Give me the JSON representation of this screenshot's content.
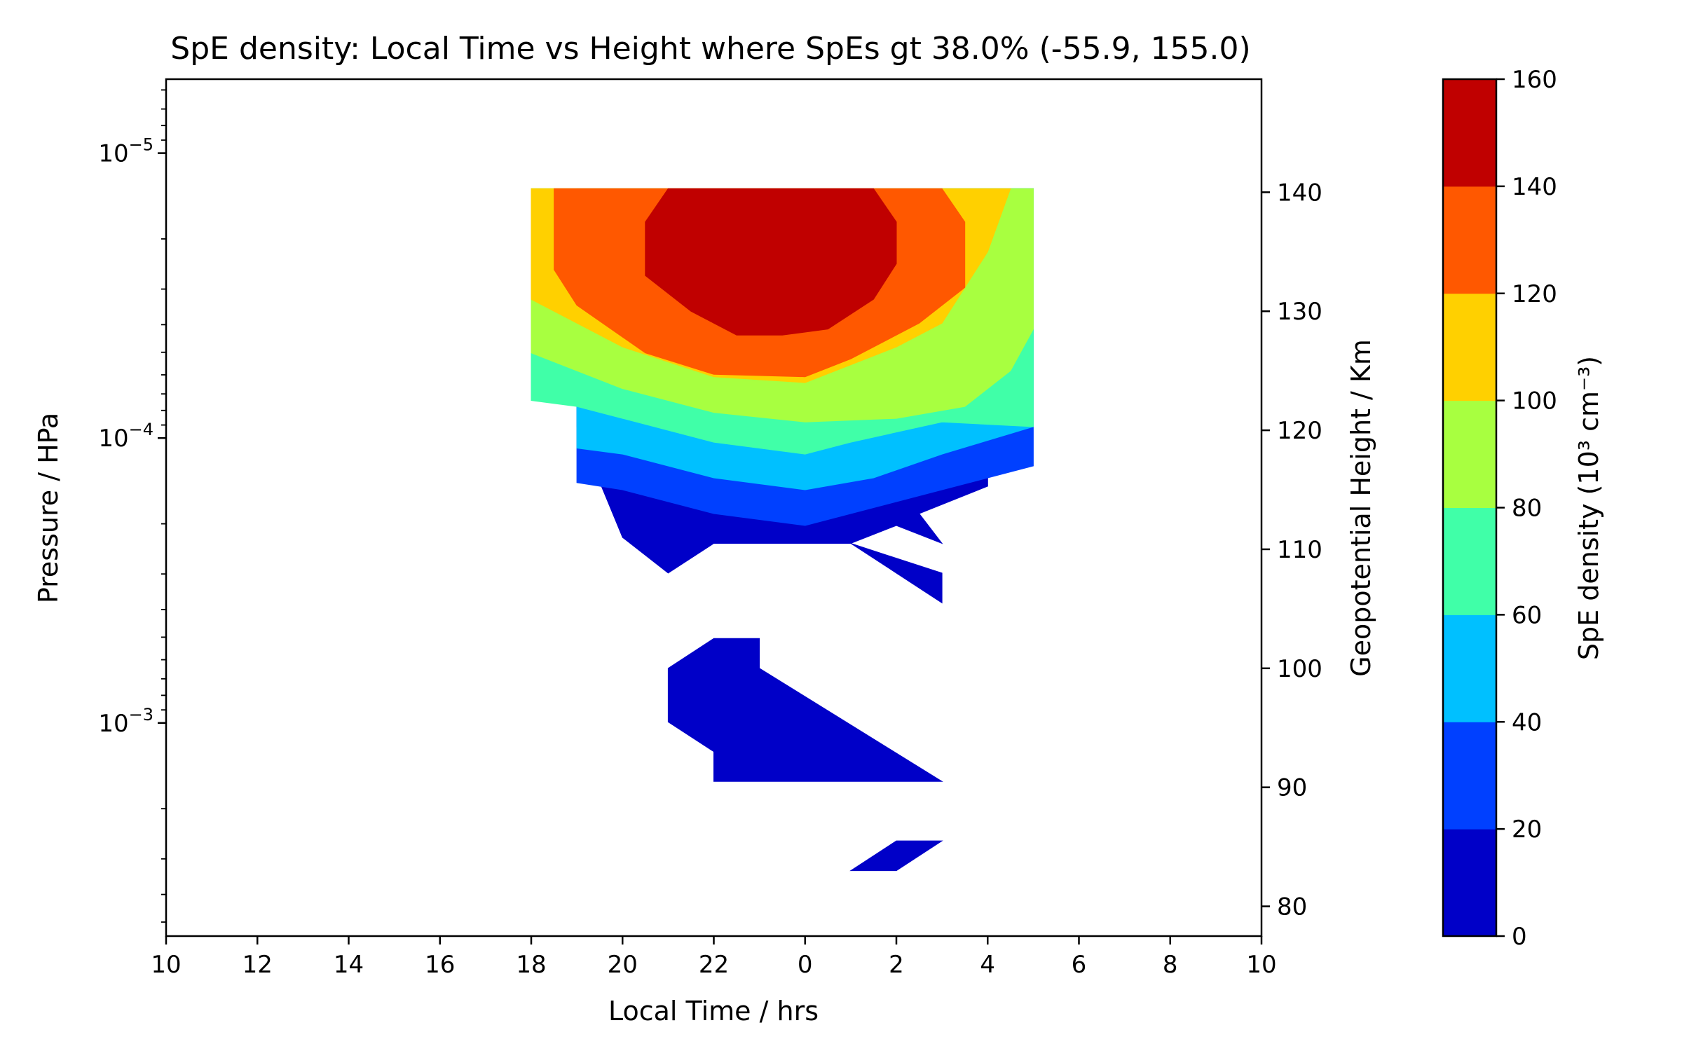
{
  "chart_data": {
    "type": "heatmap",
    "subtype": "filled-contour",
    "title": "SpE density: Local Time vs Height where SpEs gt 38.0%  (-55.9, 155.0)",
    "xlabel": "Local Time / hrs",
    "ylabel": "Pressure / HPa",
    "y2label": "Geopotential Height / Km",
    "colorbar_label": "SpE density (10³ cm⁻³)",
    "grid": false,
    "x_axis": {
      "range": [
        0,
        24
      ],
      "ticks": [
        {
          "pos": 0,
          "label": "10"
        },
        {
          "pos": 2,
          "label": "12"
        },
        {
          "pos": 4,
          "label": "14"
        },
        {
          "pos": 6,
          "label": "16"
        },
        {
          "pos": 8,
          "label": "18"
        },
        {
          "pos": 10,
          "label": "20"
        },
        {
          "pos": 12,
          "label": "22"
        },
        {
          "pos": 14,
          "label": "0"
        },
        {
          "pos": 16,
          "label": "2"
        },
        {
          "pos": 18,
          "label": "4"
        },
        {
          "pos": 20,
          "label": "6"
        },
        {
          "pos": 22,
          "label": "8"
        },
        {
          "pos": 24,
          "label": "10"
        }
      ]
    },
    "y_axis": {
      "scale": "log",
      "inverted": true,
      "range": [
        5.5e-06,
        0.0056
      ],
      "major_ticks": [
        {
          "value": 1e-05,
          "base": "10",
          "exp": "−5"
        },
        {
          "value": 0.0001,
          "base": "10",
          "exp": "−4"
        },
        {
          "value": 0.001,
          "base": "10",
          "exp": "−3"
        }
      ]
    },
    "y2_axis": {
      "range": [
        77.5,
        149.5
      ],
      "ticks": [
        {
          "value": 80,
          "label": "80"
        },
        {
          "value": 90,
          "label": "90"
        },
        {
          "value": 100,
          "label": "100"
        },
        {
          "value": 110,
          "label": "110"
        },
        {
          "value": 120,
          "label": "120"
        },
        {
          "value": 130,
          "label": "130"
        },
        {
          "value": 140,
          "label": "140"
        }
      ]
    },
    "levels": [
      0,
      20,
      40,
      60,
      80,
      100,
      120,
      140,
      160
    ],
    "colors": [
      "#0000c8",
      "#0040ff",
      "#00c0ff",
      "#40ffa8",
      "#a8ff40",
      "#ffd000",
      "#ff5800",
      "#c00000"
    ],
    "colorbar_ticks": [
      0,
      20,
      40,
      60,
      80,
      100,
      120,
      140,
      160
    ],
    "regions": [
      {
        "level": 0,
        "points": [
          [
            9,
            140.3
          ],
          [
            19,
            140.3
          ],
          [
            19,
            120.3
          ],
          [
            18,
            120.3
          ],
          [
            18,
            115.3
          ],
          [
            16.5,
            113
          ],
          [
            17,
            110.5
          ],
          [
            16,
            112
          ],
          [
            15,
            110.5
          ],
          [
            14,
            110.5
          ],
          [
            12,
            110.5
          ],
          [
            11,
            108
          ],
          [
            10,
            111
          ],
          [
            9,
            120.3
          ]
        ]
      },
      {
        "level": 0,
        "points": [
          [
            15,
            110.5
          ],
          [
            17,
            108
          ],
          [
            17,
            105.5
          ],
          [
            16,
            108
          ]
        ]
      },
      {
        "level": 0,
        "points": [
          [
            11,
            100
          ],
          [
            12,
            102.5
          ],
          [
            13,
            102.5
          ],
          [
            13,
            100
          ],
          [
            17,
            90.5
          ],
          [
            12,
            90.5
          ],
          [
            12,
            93
          ],
          [
            11,
            95.5
          ]
        ]
      },
      {
        "level": 0,
        "points": [
          [
            16,
            85.5
          ],
          [
            17,
            85.5
          ],
          [
            16,
            83
          ],
          [
            15,
            83
          ]
        ]
      },
      {
        "level": 20,
        "points": [
          [
            9,
            140.3
          ],
          [
            19,
            140.3
          ],
          [
            19,
            117
          ],
          [
            17,
            115
          ],
          [
            15.5,
            113.5
          ],
          [
            14,
            112
          ],
          [
            12,
            113
          ],
          [
            10,
            115
          ],
          [
            9,
            115.6
          ]
        ]
      },
      {
        "level": 40,
        "points": [
          [
            9,
            140.3
          ],
          [
            19,
            140.3
          ],
          [
            19,
            120.3
          ],
          [
            17,
            118
          ],
          [
            15.5,
            116
          ],
          [
            14,
            115
          ],
          [
            12,
            116
          ],
          [
            10,
            118
          ],
          [
            9,
            118.5
          ]
        ]
      },
      {
        "level": 60,
        "points": [
          [
            8,
            140.3
          ],
          [
            19,
            140.3
          ],
          [
            19,
            120.3
          ],
          [
            17,
            120.7
          ],
          [
            15,
            119
          ],
          [
            14,
            118
          ],
          [
            12,
            119
          ],
          [
            10,
            121
          ],
          [
            9,
            122
          ],
          [
            8,
            122.5
          ]
        ]
      },
      {
        "level": 80,
        "points": [
          [
            8,
            140.3
          ],
          [
            19,
            140.3
          ],
          [
            19,
            128.5
          ],
          [
            18.5,
            125
          ],
          [
            17.5,
            122
          ],
          [
            16,
            121
          ],
          [
            14,
            120.7
          ],
          [
            12,
            121.5
          ],
          [
            10,
            123.5
          ],
          [
            8,
            126.5
          ]
        ]
      },
      {
        "level": 100,
        "points": [
          [
            8,
            140.3
          ],
          [
            18.5,
            140.3
          ],
          [
            18,
            135
          ],
          [
            17.5,
            132
          ],
          [
            17,
            129
          ],
          [
            16,
            127
          ],
          [
            14,
            124
          ],
          [
            12,
            124.5
          ],
          [
            10,
            127
          ],
          [
            8,
            131
          ]
        ]
      },
      {
        "level": 120,
        "points": [
          [
            8.5,
            140.3
          ],
          [
            17,
            140.3
          ],
          [
            17.5,
            137.5
          ],
          [
            17.5,
            132
          ],
          [
            16.5,
            129
          ],
          [
            15,
            126
          ],
          [
            14,
            124.5
          ],
          [
            12,
            124.7
          ],
          [
            10.5,
            126.5
          ],
          [
            9,
            130.5
          ],
          [
            8.5,
            133.5
          ],
          [
            8.5,
            137.5
          ]
        ]
      },
      {
        "level": 140,
        "points": [
          [
            11,
            140.3
          ],
          [
            15.5,
            140.3
          ],
          [
            16,
            137.5
          ],
          [
            16,
            134
          ],
          [
            15.5,
            131
          ],
          [
            14.5,
            128.5
          ],
          [
            13.5,
            128
          ],
          [
            12.5,
            128
          ],
          [
            11.5,
            130
          ],
          [
            10.5,
            133
          ],
          [
            10.5,
            137.5
          ]
        ]
      }
    ]
  }
}
